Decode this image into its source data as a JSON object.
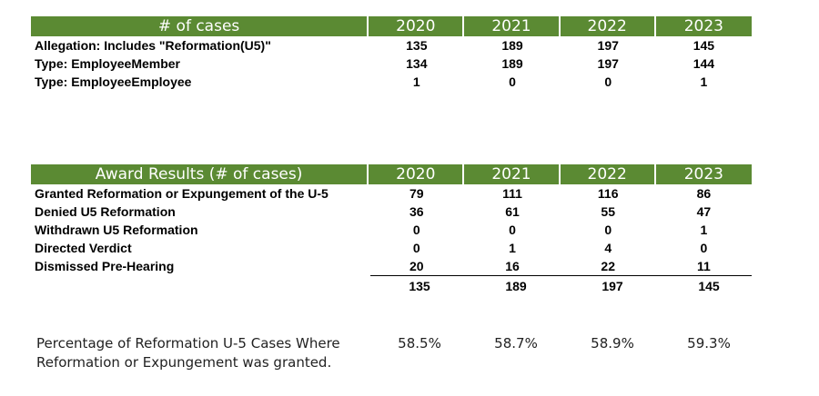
{
  "years": [
    "2020",
    "2021",
    "2022",
    "2023"
  ],
  "cases_table": {
    "header": "# of cases",
    "rows": [
      {
        "label": "Allegation: Includes \"Reformation(U5)\"",
        "values": [
          "135",
          "189",
          "197",
          "145"
        ]
      },
      {
        "label": "Type: EmployeeMember",
        "values": [
          "134",
          "189",
          "197",
          "144"
        ]
      },
      {
        "label": "Type: EmployeeEmployee",
        "values": [
          "1",
          "0",
          "0",
          "1"
        ]
      }
    ]
  },
  "award_table": {
    "header": "Award Results (# of cases)",
    "rows": [
      {
        "label": "Granted Reformation or Expungement of the U-5",
        "values": [
          "79",
          "111",
          "116",
          "86"
        ]
      },
      {
        "label": "Denied U5 Reformation",
        "values": [
          "36",
          "61",
          "55",
          "47"
        ]
      },
      {
        "label": "Withdrawn U5 Reformation",
        "values": [
          "0",
          "0",
          "0",
          "1"
        ]
      },
      {
        "label": "Directed Verdict",
        "values": [
          "0",
          "1",
          "4",
          "0"
        ]
      },
      {
        "label": "Dismissed Pre-Hearing",
        "values": [
          "20",
          "16",
          "22",
          "11"
        ]
      }
    ],
    "totals": [
      "135",
      "189",
      "197",
      "145"
    ]
  },
  "percentage": {
    "label_line1": "Percentage of Reformation U-5 Cases Where",
    "label_line2": "Reformation or Expungement  was granted.",
    "values": [
      "58.5%",
      "58.7%",
      "58.9%",
      "59.3%"
    ]
  }
}
